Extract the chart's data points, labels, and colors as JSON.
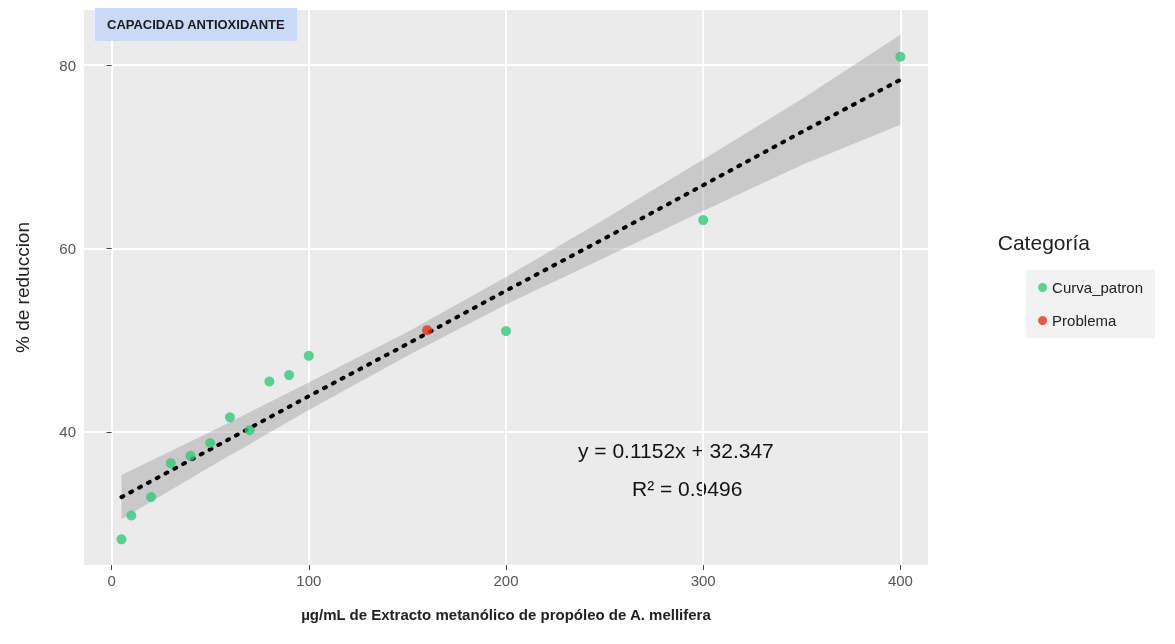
{
  "chart_data": {
    "type": "scatter",
    "title": "CAPACIDAD ANTIOXIDANTE",
    "xlabel": "µg/mL de Extracto metanólico de propóleo de A. mellifera",
    "ylabel": "% de reduccion",
    "legend_title": "Categoría",
    "annotations": [
      "y = 0.1152x + 32.347",
      "R² = 0.9496"
    ],
    "series": [
      {
        "name": "Curva_patron",
        "color": "#33c97a",
        "x": [
          5,
          10,
          20,
          30,
          40,
          50,
          60,
          70,
          80,
          90,
          100,
          200,
          300,
          400
        ],
        "values": [
          28.3,
          30.9,
          32.9,
          36.6,
          37.4,
          38.8,
          41.6,
          40.2,
          45.5,
          46.2,
          48.3,
          51.0,
          63.1,
          80.9
        ]
      },
      {
        "name": "Problema",
        "color": "#e8301c",
        "x": [
          160
        ],
        "values": [
          51.1
        ]
      },
      {
        "type": "line",
        "marker": "none",
        "line_style": "dotted",
        "color": "#000000",
        "x": [
          5,
          50,
          100,
          150,
          200,
          250,
          300,
          350,
          400
        ],
        "values": [
          32.9,
          38.1,
          43.9,
          49.6,
          55.4,
          61.1,
          66.9,
          72.7,
          78.4
        ],
        "lower": [
          30.5,
          36.2,
          42.4,
          48.3,
          53.9,
          59.0,
          64.1,
          69.1,
          73.5
        ],
        "upper": [
          35.3,
          40.0,
          45.4,
          50.9,
          56.9,
          63.2,
          69.7,
          76.3,
          83.3
        ]
      }
    ],
    "marker": "circle",
    "xlim": [
      -14,
      414
    ],
    "ylim": [
      25.5,
      86
    ],
    "xticks": [
      0,
      100,
      200,
      300,
      400
    ],
    "yticks": [
      40,
      60,
      80
    ],
    "grid": true,
    "legend": "right"
  }
}
